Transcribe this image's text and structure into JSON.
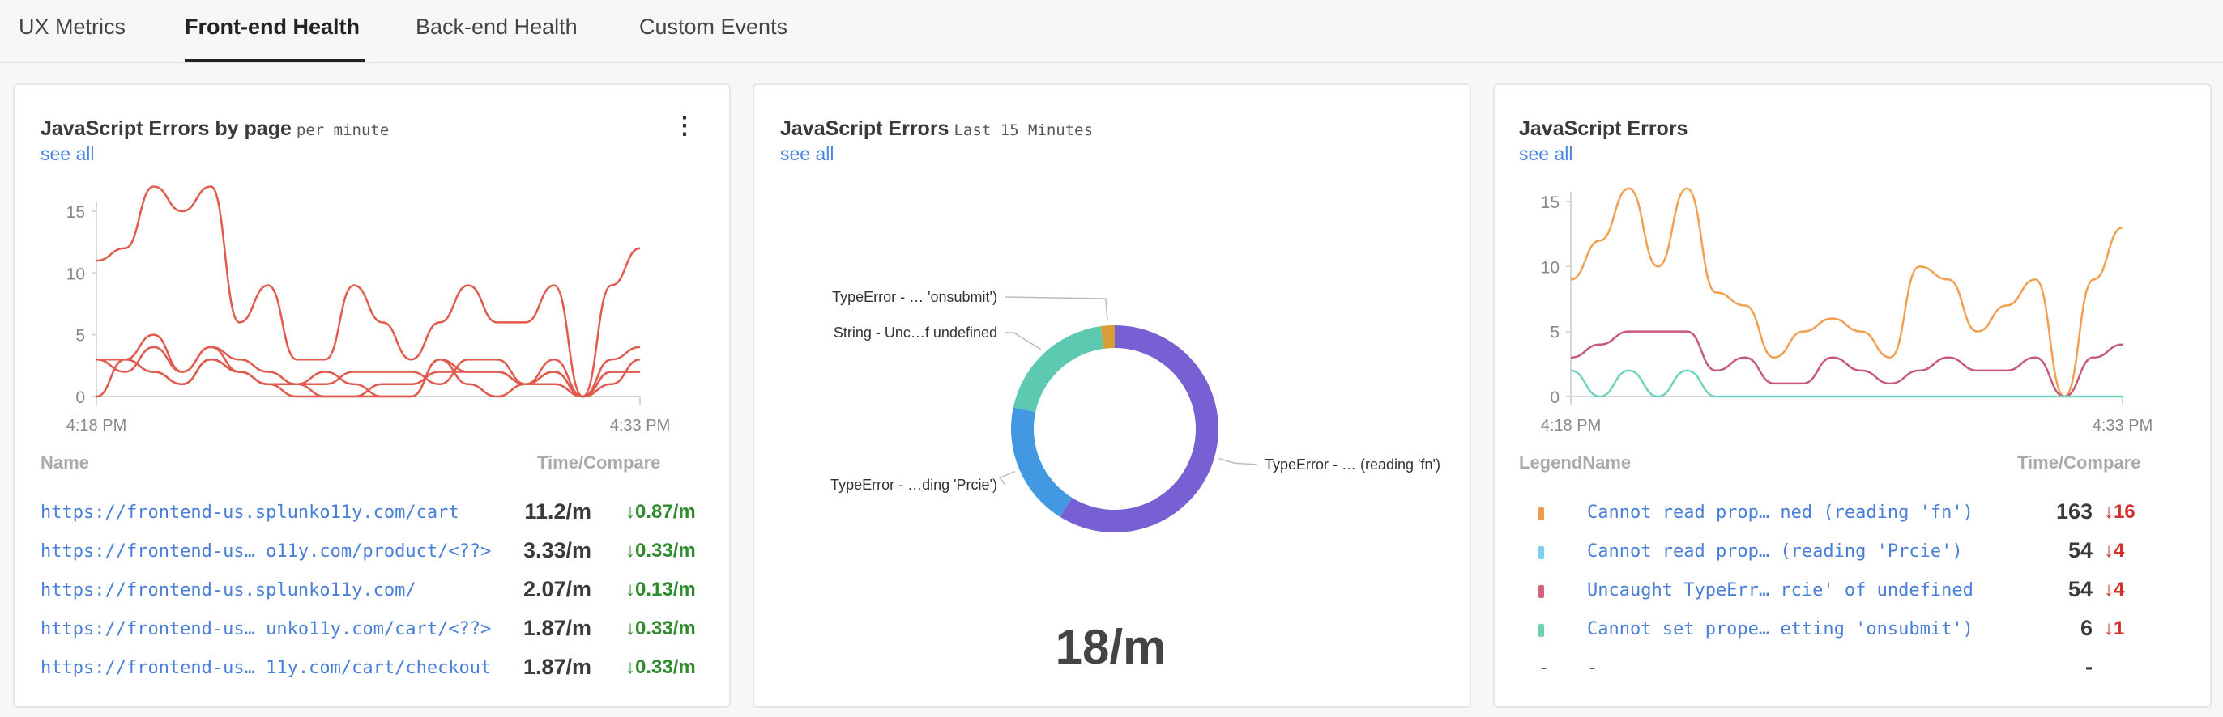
{
  "tabs": [
    {
      "label": "UX Metrics",
      "active": false
    },
    {
      "label": "Front-end Health",
      "active": true
    },
    {
      "label": "Back-end Health",
      "active": false
    },
    {
      "label": "Custom Events",
      "active": false
    }
  ],
  "card1": {
    "title": "JavaScript Errors by page",
    "subtitle": "per minute",
    "see_all": "see all",
    "menu_icon": "kebab-vertical-icon",
    "table": {
      "col_name": "Name",
      "col_time": "Time/Compare",
      "rows": [
        {
          "name": "https://frontend-us.splunko11y.com/cart",
          "value": "11.2/m",
          "compare": "↓0.87/m"
        },
        {
          "name": "https://frontend-us… o11y.com/product/<??>",
          "value": "3.33/m",
          "compare": "↓0.33/m"
        },
        {
          "name": "https://frontend-us.splunko11y.com/",
          "value": "2.07/m",
          "compare": "↓0.13/m"
        },
        {
          "name": "https://frontend-us… unko11y.com/cart/<??>",
          "value": "1.87/m",
          "compare": "↓0.33/m"
        },
        {
          "name": "https://frontend-us… 11y.com/cart/checkout",
          "value": "1.87/m",
          "compare": "↓0.33/m"
        }
      ],
      "compare_color": "#2e8b2e"
    }
  },
  "card2": {
    "title": "JavaScript Errors",
    "subtitle": "Last 15 Minutes",
    "see_all": "see all",
    "total": "18/m"
  },
  "card3": {
    "title": "JavaScript Errors",
    "see_all": "see all",
    "table": {
      "col_name": "LegendName",
      "col_time": "Time/Compare",
      "rows": [
        {
          "name": "Cannot read prop… ned (reading 'fn')",
          "value": "163",
          "compare": "↓16",
          "color": "#ef9a4a"
        },
        {
          "name": "Cannot read prop…  (reading 'Prcie')",
          "value": "54",
          "compare": "↓4",
          "color": "#7fd0ee"
        },
        {
          "name": "Uncaught TypeErr… rcie' of undefined",
          "value": "54",
          "compare": "↓4",
          "color": "#d9617a"
        },
        {
          "name": "Cannot set prope… etting 'onsubmit')",
          "value": "6",
          "compare": "↓1",
          "color": "#6fd1ad"
        }
      ],
      "empty_row": {
        "swatch": "-",
        "name": "-",
        "value": "-"
      },
      "compare_color": "#d1322e"
    }
  },
  "chart_data": [
    {
      "type": "line",
      "x": [
        "4:18 PM",
        "",
        "",
        "",
        "",
        "",
        "",
        "",
        "",
        "",
        "",
        "",
        "",
        "",
        "",
        "",
        "",
        "",
        "",
        "4:33 PM"
      ],
      "xticks": [
        "4:18 PM",
        "4:33 PM"
      ],
      "yticks": [
        0,
        5,
        10,
        15
      ],
      "ylim": [
        0,
        17
      ],
      "color": "#e05a4e",
      "series": [
        {
          "values": [
            11,
            12,
            17,
            15,
            17,
            6,
            9,
            3,
            3,
            9,
            6,
            3,
            6,
            9,
            6,
            6,
            9,
            0,
            9,
            12
          ]
        },
        {
          "values": [
            3,
            2,
            4,
            2,
            4,
            3,
            2,
            1,
            1,
            2,
            2,
            2,
            1,
            3,
            3,
            1,
            3,
            0,
            3,
            4
          ]
        },
        {
          "values": [
            3,
            3,
            2,
            1,
            3,
            2,
            1,
            0,
            0,
            0,
            1,
            1,
            2,
            2,
            2,
            1,
            2,
            0,
            1,
            3
          ]
        },
        {
          "values": [
            0,
            3,
            5,
            2,
            4,
            2,
            1,
            1,
            2,
            1,
            0,
            0,
            3,
            1,
            0,
            1,
            2,
            0,
            2,
            2
          ]
        },
        {
          "values": [
            3,
            3,
            2,
            1,
            3,
            2,
            1,
            1,
            0,
            0,
            0,
            0,
            3,
            2,
            2,
            1,
            1,
            0,
            2,
            2
          ]
        }
      ]
    },
    {
      "type": "pie",
      "donut": true,
      "slices": [
        {
          "label": "TypeError - … (reading 'fn')",
          "value": 163,
          "color": "#775fd4"
        },
        {
          "label": "TypeError - …ding 'Prcie')",
          "value": 54,
          "color": "#4299e1"
        },
        {
          "label": "String - Unc…f undefined",
          "value": 54,
          "color": "#5cc9b0"
        },
        {
          "label": "TypeError - … 'onsubmit')",
          "value": 6,
          "color": "#d69e35"
        }
      ]
    },
    {
      "type": "line",
      "x": [
        "4:18 PM",
        "",
        "",
        "",
        "",
        "",
        "",
        "",
        "",
        "",
        "",
        "",
        "",
        "",
        "",
        "",
        "",
        "",
        "",
        "4:33 PM"
      ],
      "xticks": [
        "4:18 PM",
        "4:33 PM"
      ],
      "yticks": [
        0,
        5,
        10,
        15
      ],
      "ylim": [
        0,
        16
      ],
      "series": [
        {
          "values": [
            9,
            12,
            16,
            10,
            16,
            8,
            7,
            3,
            5,
            6,
            5,
            3,
            10,
            9,
            5,
            7,
            9,
            0,
            9,
            13
          ],
          "color": "#f0a050"
        },
        {
          "values": [
            3,
            4,
            5,
            5,
            5,
            2,
            3,
            1,
            1,
            3,
            2,
            1,
            2,
            3,
            2,
            2,
            3,
            0,
            3,
            4
          ],
          "color": "#c75a7a"
        },
        {
          "values": [
            2,
            0,
            2,
            0,
            2,
            0,
            0,
            0,
            0,
            0,
            0,
            0,
            0,
            0,
            0,
            0,
            0,
            0,
            0,
            0
          ],
          "color": "#6fd3bf"
        }
      ]
    }
  ]
}
